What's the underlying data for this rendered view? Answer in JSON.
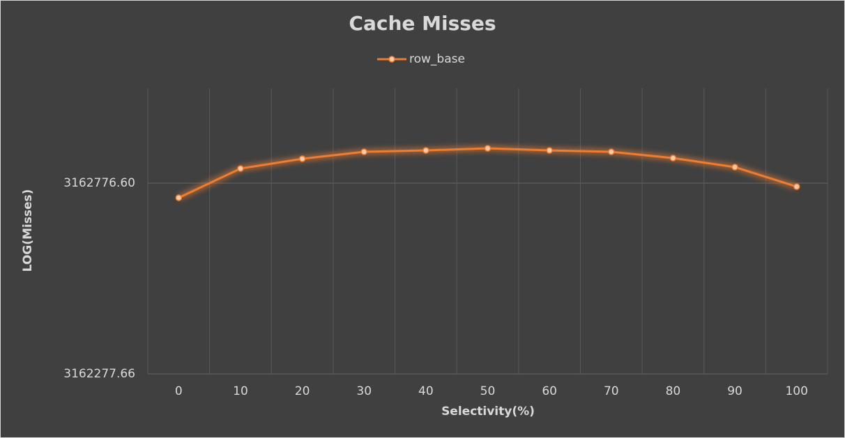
{
  "chart_data": {
    "type": "line",
    "title": "Cache Misses",
    "x_label": "Selectivity(%)",
    "y_label": "LOG(Misses)",
    "categories": [
      "0",
      "10",
      "20",
      "30",
      "40",
      "50",
      "60",
      "70",
      "80",
      "90",
      "100"
    ],
    "series": [
      {
        "name": "row_base",
        "color": "#ed7d31",
        "values": [
          3162738.4,
          3162814.8,
          3162840.3,
          3162858.5,
          3162862.2,
          3162867.6,
          3162862.2,
          3162858.5,
          3162842.2,
          3162818.5,
          3162767.5
        ]
      }
    ],
    "log_scale": true,
    "ylim": [
      3162277.66,
      3163024.3
    ],
    "yticks": [
      3162277.66,
      {
        "value": 3162776.6,
        "label": "3162776.60"
      }
    ],
    "grid": true,
    "legend": "top"
  }
}
